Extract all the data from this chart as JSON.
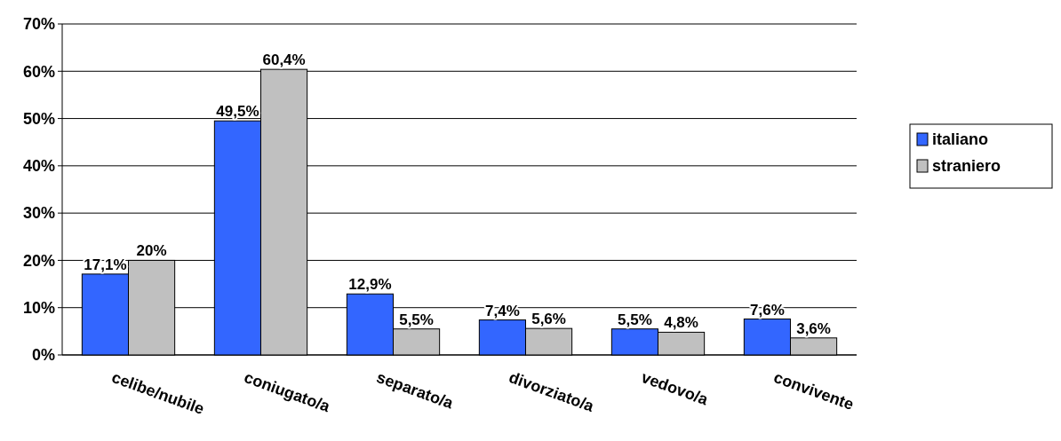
{
  "chart_data": {
    "type": "bar",
    "categories": [
      "celibe/nubile",
      "coniugato/a",
      "separato/a",
      "divorziato/a",
      "vedovo/a",
      "convivente"
    ],
    "series": [
      {
        "name": "italiano",
        "color": "#3366ff",
        "values": [
          17.1,
          49.5,
          12.9,
          7.4,
          5.5,
          7.6
        ],
        "value_labels": [
          "17,1%",
          "49,5%",
          "12,9%",
          "7,4%",
          "5,5%",
          "7,6%"
        ]
      },
      {
        "name": "straniero",
        "color": "#c0c0c0",
        "values": [
          20,
          60.4,
          5.5,
          5.6,
          4.8,
          3.6
        ],
        "value_labels": [
          "20%",
          "60,4%",
          "5,5%",
          "5,6%",
          "4,8%",
          "3,6%"
        ]
      }
    ],
    "ylim": [
      0,
      70
    ],
    "yticks": [
      {
        "value": 0,
        "label": "0%"
      },
      {
        "value": 10,
        "label": "10%"
      },
      {
        "value": 20,
        "label": "20%"
      },
      {
        "value": 30,
        "label": "30%"
      },
      {
        "value": 40,
        "label": "40%"
      },
      {
        "value": 50,
        "label": "50%"
      },
      {
        "value": 60,
        "label": "60%"
      },
      {
        "value": 70,
        "label": "70%"
      }
    ],
    "grid": "y",
    "legend": "right"
  }
}
